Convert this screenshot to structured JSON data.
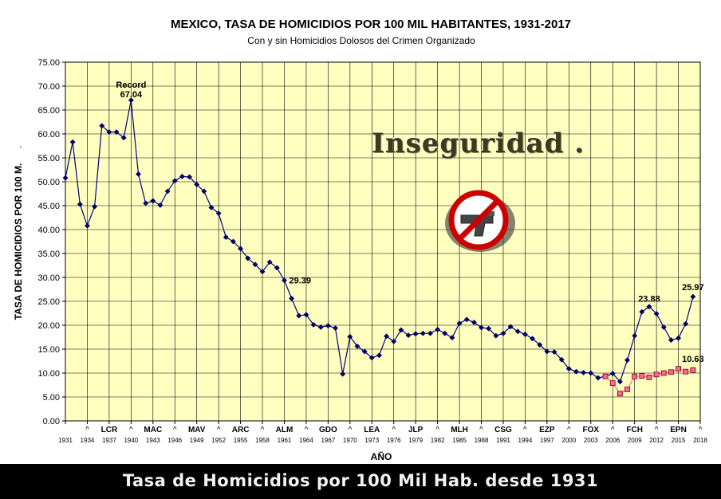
{
  "chart_data": {
    "type": "line",
    "title": "MEXICO, TASA DE HOMICIDIOS POR 100 MIL HABITANTES, 1931-2017",
    "subtitle": "Con y sin Homicidios Dolosos del Crimen Organizado",
    "xlabel": "AÑO",
    "ylabel": "TASA DE HOMICIDIOS POR 100 M.",
    "ylim": [
      0,
      75
    ],
    "xlim": [
      1931,
      2018
    ],
    "grid": true,
    "y_ticks": [
      "0.00",
      "5.00",
      "10.00",
      "15.00",
      "20.00",
      "25.00",
      "30.00",
      "35.00",
      "40.00",
      "45.00",
      "50.00",
      "55.00",
      "60.00",
      "65.00",
      "70.00",
      "75.00"
    ],
    "x_ticks": [
      "1931",
      "1934",
      "1937",
      "1940",
      "1943",
      "1946",
      "1949",
      "1952",
      "1955",
      "1958",
      "1961",
      "1964",
      "1967",
      "1970",
      "1973",
      "1976",
      "1979",
      "1982",
      "1985",
      "1988",
      "1991",
      "1994",
      "1997",
      "2000",
      "2003",
      "2006",
      "2009",
      "2012",
      "2015",
      "2018"
    ],
    "presidents": [
      {
        "label": "LCR",
        "year": 1937
      },
      {
        "label": "MAC",
        "year": 1943
      },
      {
        "label": "MAV",
        "year": 1949
      },
      {
        "label": "ARC",
        "year": 1955
      },
      {
        "label": "ALM",
        "year": 1961
      },
      {
        "label": "GDO",
        "year": 1967
      },
      {
        "label": "LEA",
        "year": 1973
      },
      {
        "label": "JLP",
        "year": 1979
      },
      {
        "label": "MLH",
        "year": 1985
      },
      {
        "label": "CSG",
        "year": 1991
      },
      {
        "label": "EZP",
        "year": 1997
      },
      {
        "label": "FOX",
        "year": 2003
      },
      {
        "label": "FCH",
        "year": 2009
      },
      {
        "label": "EPN",
        "year": 2015
      }
    ],
    "president_markers": [
      1934,
      1940,
      1946,
      1952,
      1958,
      1964,
      1970,
      1976,
      1982,
      1988,
      1994,
      2000,
      2006,
      2012,
      2018
    ],
    "series": [
      {
        "color": "#000080",
        "marker": "diamond",
        "x": [
          1931,
          1932,
          1933,
          1934,
          1935,
          1936,
          1937,
          1938,
          1939,
          1940,
          1941,
          1942,
          1943,
          1944,
          1945,
          1946,
          1947,
          1948,
          1949,
          1950,
          1951,
          1952,
          1953,
          1954,
          1955,
          1956,
          1957,
          1958,
          1959,
          1960,
          1961,
          1962,
          1963,
          1964,
          1965,
          1966,
          1967,
          1968,
          1969,
          1970,
          1971,
          1972,
          1973,
          1974,
          1975,
          1976,
          1977,
          1978,
          1979,
          1980,
          1981,
          1982,
          1983,
          1984,
          1985,
          1986,
          1987,
          1988,
          1989,
          1990,
          1991,
          1992,
          1993,
          1994,
          1995,
          1996,
          1997,
          1998,
          1999,
          2000,
          2001,
          2002,
          2003,
          2004,
          2005,
          2006,
          2007,
          2008,
          2009,
          2010,
          2011,
          2012,
          2013,
          2014,
          2015,
          2016,
          2017
        ],
        "y": [
          50.8,
          58.3,
          45.3,
          40.8,
          44.8,
          61.7,
          60.4,
          60.4,
          59.2,
          67.04,
          51.6,
          45.5,
          46.0,
          45.1,
          48.0,
          50.2,
          51.1,
          51.0,
          49.4,
          48.0,
          44.6,
          43.4,
          38.4,
          37.5,
          36.0,
          34.0,
          32.7,
          31.2,
          33.2,
          32.0,
          29.39,
          25.6,
          22.0,
          22.2,
          20.1,
          19.6,
          19.9,
          19.4,
          9.8,
          17.6,
          15.6,
          14.5,
          13.2,
          13.7,
          17.7,
          16.6,
          19.0,
          17.9,
          18.2,
          18.3,
          18.3,
          19.1,
          18.3,
          17.4,
          20.4,
          21.2,
          20.6,
          19.5,
          19.3,
          17.8,
          18.3,
          19.7,
          18.7,
          18.1,
          17.2,
          15.9,
          14.5,
          14.4,
          12.8,
          10.9,
          10.3,
          10.1,
          10.0,
          9.0,
          9.3,
          9.9,
          8.2,
          12.7,
          17.8,
          22.8,
          23.88,
          22.4,
          19.6,
          16.9,
          17.3,
          20.3,
          25.97
        ]
      },
      {
        "color": "#ff6699",
        "marker": "square",
        "x": [
          2005,
          2006,
          2007,
          2008,
          2009,
          2010,
          2011,
          2012,
          2013,
          2014,
          2015,
          2016,
          2017
        ],
        "y": [
          9.3,
          7.9,
          5.7,
          6.6,
          9.3,
          9.4,
          9.1,
          9.7,
          10.0,
          10.2,
          10.9,
          10.3,
          10.63
        ]
      }
    ],
    "annotations": [
      {
        "text": "Record",
        "x": 1940,
        "y": 67.04
      },
      {
        "text": "67.04",
        "x": 1940,
        "y": 67.04
      },
      {
        "text": "29.39",
        "x": 1961,
        "y": 29.39
      },
      {
        "text": "23.88",
        "x": 2011,
        "y": 23.88
      },
      {
        "text": "25.97",
        "x": 2017,
        "y": 25.97
      },
      {
        "text": "10.63",
        "x": 2017,
        "y": 10.63
      }
    ]
  },
  "watermark": {
    "text": "Inseguridad .",
    "icon": "no-gun-icon"
  },
  "footer": {
    "text": "Tasa de Homicidios por 100 Mil Hab. desde 1931"
  }
}
